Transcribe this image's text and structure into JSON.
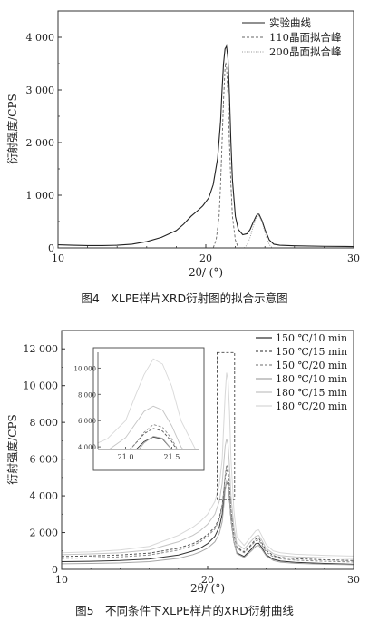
{
  "figure4": {
    "caption": "图4　XLPE样片XRD衍射图的拟合示意图",
    "chart_data": {
      "type": "line",
      "xlabel": "2θ/ (°)",
      "ylabel": "衍射强度/CPS",
      "xlim": [
        10,
        30
      ],
      "ylim": [
        0,
        4500
      ],
      "xticks": [
        10,
        20,
        30
      ],
      "yticks": [
        0,
        1000,
        2000,
        3000,
        4000
      ],
      "ytick_labels": [
        "0",
        "1 000",
        "2 000",
        "3 000",
        "4 000"
      ],
      "legend_position": "top-right",
      "series": [
        {
          "name": "实验曲线",
          "style": "solid",
          "x": [
            10.0,
            11.0,
            12.0,
            13.0,
            14.0,
            15.0,
            16.0,
            17.0,
            18.0,
            18.5,
            19.0,
            19.5,
            19.8,
            20.2,
            20.5,
            20.8,
            21.0,
            21.1,
            21.2,
            21.3,
            21.4,
            21.5,
            21.6,
            21.7,
            21.8,
            22.0,
            22.2,
            22.5,
            22.8,
            23.0,
            23.2,
            23.4,
            23.5,
            23.6,
            23.8,
            24.0,
            24.3,
            24.6,
            25.0,
            26.0,
            28.0,
            30.0
          ],
          "y": [
            60,
            50,
            45,
            45,
            50,
            70,
            120,
            200,
            330,
            450,
            600,
            720,
            800,
            950,
            1200,
            1700,
            2400,
            3000,
            3500,
            3780,
            3830,
            3600,
            2900,
            2000,
            1300,
            600,
            350,
            250,
            270,
            350,
            480,
            600,
            640,
            640,
            520,
            350,
            150,
            70,
            50,
            40,
            30,
            25
          ]
        },
        {
          "name": "110晶面拟合峰",
          "style": "dashed",
          "x": [
            20.5,
            20.7,
            20.9,
            21.0,
            21.1,
            21.2,
            21.3,
            21.35,
            21.4,
            21.5,
            21.6,
            21.7,
            21.8,
            22.0,
            22.2
          ],
          "y": [
            0,
            150,
            600,
            1200,
            2000,
            2800,
            3400,
            3520,
            3450,
            2900,
            2000,
            1200,
            600,
            150,
            0
          ]
        },
        {
          "name": "200晶面拟合峰",
          "style": "dotted",
          "x": [
            22.6,
            22.8,
            23.0,
            23.2,
            23.4,
            23.55,
            23.7,
            23.9,
            24.1,
            24.3,
            24.5
          ],
          "y": [
            0,
            60,
            200,
            400,
            560,
            620,
            560,
            400,
            200,
            60,
            0
          ]
        }
      ]
    }
  },
  "figure5": {
    "caption": "图5　不同条件下XLPE样片的XRD衍射曲线",
    "chart_data": {
      "type": "line",
      "xlabel": "2θ/ (°)",
      "ylabel": "衍射强度/CPS",
      "xlim": [
        10,
        30
      ],
      "ylim": [
        0,
        13000
      ],
      "xticks": [
        10,
        20,
        30
      ],
      "yticks": [
        0,
        2000,
        4000,
        6000,
        8000,
        10000,
        12000
      ],
      "ytick_labels": [
        "0",
        "2 000",
        "4 000",
        "6 000",
        "8 000",
        "10 000",
        "12 000"
      ],
      "legend_position": "top-right",
      "x": [
        10.0,
        12.0,
        14.0,
        16.0,
        18.0,
        19.0,
        19.5,
        20.0,
        20.5,
        20.8,
        21.0,
        21.1,
        21.2,
        21.3,
        21.4,
        21.5,
        21.6,
        21.8,
        22.0,
        22.5,
        23.0,
        23.3,
        23.5,
        23.7,
        24.0,
        24.5,
        25.0,
        26.0,
        28.0,
        30.0
      ],
      "series": [
        {
          "name": "150 ℃/10 min",
          "color": "#333333",
          "style": "solid",
          "y": [
            420,
            440,
            480,
            560,
            780,
            1000,
            1150,
            1400,
            1800,
            2300,
            3000,
            3700,
            4400,
            4750,
            4600,
            3800,
            2700,
            1500,
            900,
            700,
            1100,
            1400,
            1420,
            1200,
            800,
            550,
            450,
            380,
            320,
            280
          ]
        },
        {
          "name": "150 ℃/15 min",
          "color": "#555555",
          "style": "dashed",
          "y": [
            700,
            730,
            780,
            880,
            1150,
            1400,
            1600,
            1900,
            2300,
            2800,
            3500,
            4200,
            5000,
            5400,
            5200,
            4400,
            3200,
            1900,
            1200,
            950,
            1350,
            1650,
            1700,
            1450,
            1050,
            750,
            650,
            580,
            520,
            480
          ]
        },
        {
          "name": "150 ℃/20 min",
          "color": "#8a8a8a",
          "style": "dashed",
          "y": [
            600,
            620,
            680,
            780,
            1050,
            1300,
            1500,
            1800,
            2200,
            2700,
            3400,
            4200,
            5100,
            5700,
            5500,
            4600,
            3300,
            1900,
            1150,
            900,
            1300,
            1550,
            1600,
            1350,
            950,
            680,
            580,
            500,
            440,
            400
          ]
        },
        {
          "name": "180 ℃/10 min",
          "color": "#a8a8a8",
          "style": "solid",
          "y": [
            300,
            320,
            350,
            420,
            600,
            800,
            950,
            1150,
            1500,
            1950,
            2600,
            3400,
            4300,
            4800,
            4650,
            3800,
            2700,
            1500,
            850,
            650,
            1000,
            1250,
            1300,
            1100,
            750,
            480,
            390,
            330,
            280,
            250
          ]
        },
        {
          "name": "180 ℃/15 min",
          "color": "#c4c4c4",
          "style": "solid",
          "y": [
            800,
            840,
            900,
            1050,
            1500,
            1850,
            2100,
            2450,
            3000,
            3700,
            4700,
            5700,
            6700,
            7100,
            6800,
            5600,
            4000,
            2300,
            1400,
            1100,
            1550,
            1800,
            1850,
            1600,
            1150,
            850,
            750,
            680,
            630,
            600
          ]
        },
        {
          "name": "180 ℃/20 min",
          "color": "#d8d8d8",
          "style": "solid",
          "y": [
            900,
            950,
            1050,
            1250,
            1850,
            2300,
            2600,
            3000,
            3700,
            4600,
            6000,
            7800,
            9500,
            10700,
            10300,
            8600,
            6000,
            3200,
            1750,
            1300,
            1800,
            2100,
            2150,
            1850,
            1350,
            1000,
            900,
            820,
            760,
            720
          ]
        }
      ],
      "inset": {
        "xlim": [
          20.7,
          21.8
        ],
        "ylim": [
          3800,
          11200
        ],
        "xticks": [
          21.0,
          21.5
        ],
        "xtick_labels": [
          "21.0",
          "21.5"
        ],
        "yticks": [
          4000,
          6000,
          8000,
          10000
        ],
        "ytick_labels": [
          "4 000",
          "6 000",
          "8 000",
          "10 000"
        ]
      },
      "zoom_box": {
        "x0": 20.65,
        "x1": 21.85,
        "y0": 3800,
        "y1": 11800
      }
    }
  }
}
